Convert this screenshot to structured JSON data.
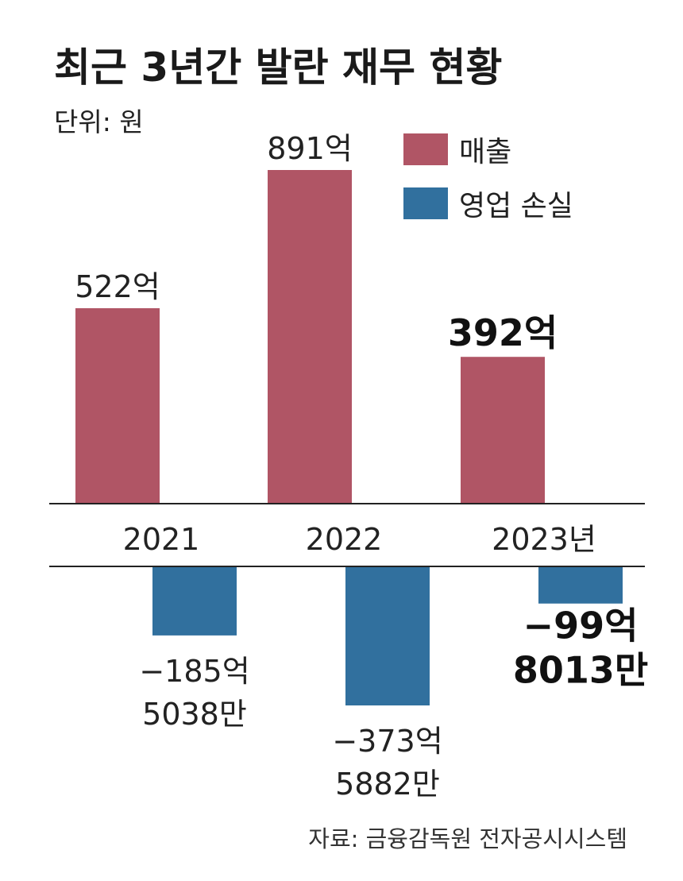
{
  "chart_data": {
    "type": "bar",
    "title": "최근 3년간 발란 재무 현황",
    "unit_label": "단위: 원",
    "categories": [
      "2021",
      "2022",
      "2023년"
    ],
    "series": [
      {
        "name": "매출",
        "color": "#b05565",
        "values": [
          52200000000,
          89100000000,
          39200000000
        ],
        "labels": [
          [
            "522억"
          ],
          [
            "891억"
          ],
          [
            "392억"
          ]
        ],
        "label_bold": [
          false,
          false,
          true
        ]
      },
      {
        "name": "영업 손실",
        "color": "#31709e",
        "values": [
          -18550380000,
          -37358820000,
          -9980130000
        ],
        "labels": [
          [
            "−185억",
            "5038만"
          ],
          [
            "−373억",
            "5882만"
          ],
          [
            "−99억",
            "8013만"
          ]
        ],
        "label_bold": [
          false,
          false,
          true
        ]
      }
    ],
    "legend_position": "top-right",
    "grid": false,
    "source": "자료: 금융감독원 전자공시시스템"
  }
}
